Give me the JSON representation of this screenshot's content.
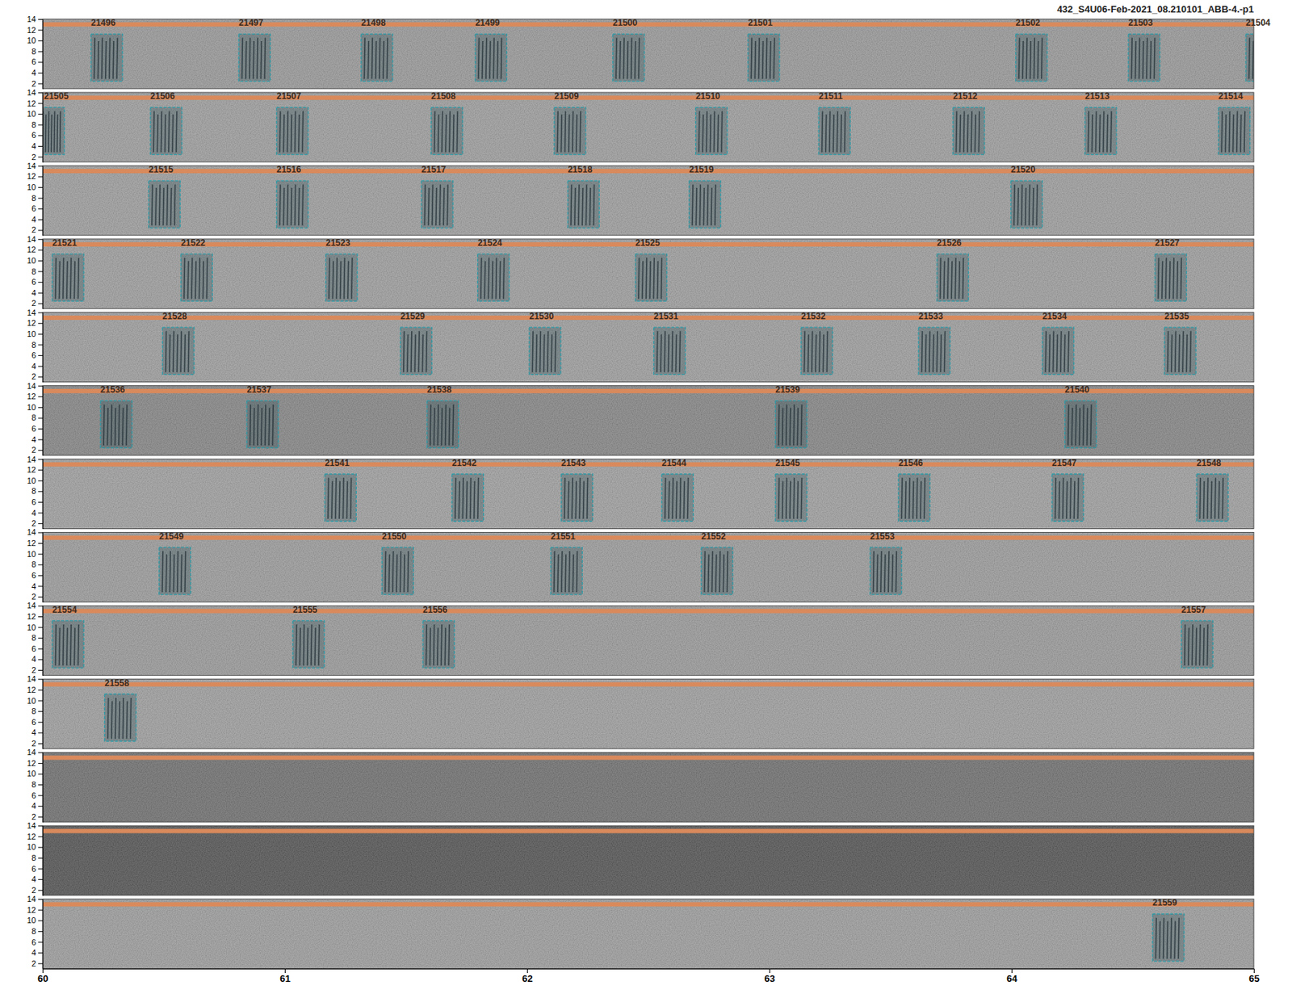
{
  "chart_data": {
    "type": "spectrogram",
    "title": "432_S4U06-Feb-2021_08.210101_ABB-4.-p1",
    "xlim": [
      60,
      65
    ],
    "xticks": [
      60,
      61,
      62,
      63,
      64,
      65
    ],
    "ylim": [
      1,
      14
    ],
    "yticks": [
      2,
      4,
      6,
      8,
      10,
      12,
      14
    ],
    "tick_labels": "y",
    "band": [
      12.6,
      13.4
    ],
    "box_freq": [
      2.4,
      11.2
    ],
    "rows": [
      {
        "color": "#8d8d8d",
        "boxes": [
          {
            "label": "21496",
            "start": 60.2,
            "end": 60.33
          },
          {
            "label": "21497",
            "start": 60.81,
            "end": 60.94
          },
          {
            "label": "21498",
            "start": 61.315,
            "end": 61.445
          },
          {
            "label": "21499",
            "start": 61.786,
            "end": 61.916
          },
          {
            "label": "21500",
            "start": 62.354,
            "end": 62.484
          },
          {
            "label": "21501",
            "start": 62.912,
            "end": 63.042
          },
          {
            "label": "21502",
            "start": 64.017,
            "end": 64.147
          },
          {
            "label": "21503",
            "start": 64.482,
            "end": 64.612
          },
          {
            "label": "21504",
            "start": 64.967,
            "end": 65.097
          }
        ]
      },
      {
        "color": "#939393",
        "boxes": [
          {
            "label": "21505",
            "start": 59.99,
            "end": 60.09
          },
          {
            "label": "21506",
            "start": 60.445,
            "end": 60.575
          },
          {
            "label": "21507",
            "start": 60.966,
            "end": 61.096
          },
          {
            "label": "21508",
            "start": 61.604,
            "end": 61.734
          },
          {
            "label": "21509",
            "start": 62.112,
            "end": 62.242
          },
          {
            "label": "21510",
            "start": 62.696,
            "end": 62.826
          },
          {
            "label": "21511",
            "start": 63.204,
            "end": 63.334
          },
          {
            "label": "21512",
            "start": 63.758,
            "end": 63.888
          },
          {
            "label": "21513",
            "start": 64.303,
            "end": 64.433
          },
          {
            "label": "21514",
            "start": 64.854,
            "end": 64.984
          }
        ]
      },
      {
        "color": "#939393",
        "boxes": [
          {
            "label": "21515",
            "start": 60.438,
            "end": 60.568
          },
          {
            "label": "21516",
            "start": 60.966,
            "end": 61.096
          },
          {
            "label": "21517",
            "start": 61.564,
            "end": 61.694
          },
          {
            "label": "21518",
            "start": 62.168,
            "end": 62.298
          },
          {
            "label": "21519",
            "start": 62.669,
            "end": 62.799
          },
          {
            "label": "21520",
            "start": 63.997,
            "end": 64.127
          }
        ]
      },
      {
        "color": "#939393",
        "boxes": [
          {
            "label": "21521",
            "start": 60.04,
            "end": 60.17
          },
          {
            "label": "21522",
            "start": 60.571,
            "end": 60.701
          },
          {
            "label": "21523",
            "start": 61.169,
            "end": 61.299
          },
          {
            "label": "21524",
            "start": 61.796,
            "end": 61.926
          },
          {
            "label": "21525",
            "start": 62.447,
            "end": 62.577
          },
          {
            "label": "21526",
            "start": 63.692,
            "end": 63.822
          },
          {
            "label": "21527",
            "start": 64.592,
            "end": 64.722
          }
        ]
      },
      {
        "color": "#939393",
        "boxes": [
          {
            "label": "21528",
            "start": 60.495,
            "end": 60.625
          },
          {
            "label": "21529",
            "start": 61.477,
            "end": 61.607
          },
          {
            "label": "21530",
            "start": 62.009,
            "end": 62.139
          },
          {
            "label": "21531",
            "start": 62.523,
            "end": 62.653
          },
          {
            "label": "21532",
            "start": 63.131,
            "end": 63.261
          },
          {
            "label": "21533",
            "start": 63.616,
            "end": 63.746
          },
          {
            "label": "21534",
            "start": 64.127,
            "end": 64.257
          },
          {
            "label": "21535",
            "start": 64.631,
            "end": 64.761
          }
        ]
      },
      {
        "color": "#767676",
        "boxes": [
          {
            "label": "21536",
            "start": 60.239,
            "end": 60.369
          },
          {
            "label": "21537",
            "start": 60.843,
            "end": 60.973
          },
          {
            "label": "21538",
            "start": 61.587,
            "end": 61.717
          },
          {
            "label": "21539",
            "start": 63.025,
            "end": 63.155
          },
          {
            "label": "21540",
            "start": 64.22,
            "end": 64.35
          }
        ]
      },
      {
        "color": "#959595",
        "boxes": [
          {
            "label": "21541",
            "start": 61.165,
            "end": 61.295
          },
          {
            "label": "21542",
            "start": 61.69,
            "end": 61.82
          },
          {
            "label": "21543",
            "start": 62.141,
            "end": 62.271
          },
          {
            "label": "21544",
            "start": 62.556,
            "end": 62.686
          },
          {
            "label": "21545",
            "start": 63.025,
            "end": 63.155
          },
          {
            "label": "21546",
            "start": 63.533,
            "end": 63.663
          },
          {
            "label": "21547",
            "start": 64.167,
            "end": 64.297
          },
          {
            "label": "21548",
            "start": 64.764,
            "end": 64.894
          }
        ]
      },
      {
        "color": "#909090",
        "boxes": [
          {
            "label": "21549",
            "start": 60.481,
            "end": 60.611
          },
          {
            "label": "21550",
            "start": 61.401,
            "end": 61.531
          },
          {
            "label": "21551",
            "start": 62.098,
            "end": 62.228
          },
          {
            "label": "21552",
            "start": 62.719,
            "end": 62.849
          },
          {
            "label": "21553",
            "start": 63.416,
            "end": 63.546
          }
        ]
      },
      {
        "color": "#8e8e8e",
        "boxes": [
          {
            "label": "21554",
            "start": 60.04,
            "end": 60.17
          },
          {
            "label": "21555",
            "start": 61.033,
            "end": 61.163
          },
          {
            "label": "21556",
            "start": 61.57,
            "end": 61.7
          },
          {
            "label": "21557",
            "start": 64.701,
            "end": 64.831
          }
        ]
      },
      {
        "color": "#949494",
        "boxes": [
          {
            "label": "21558",
            "start": 60.256,
            "end": 60.386
          }
        ]
      },
      {
        "color": "#5c5c5c",
        "boxes": []
      },
      {
        "color": "#3a3a3a",
        "boxes": []
      },
      {
        "color": "#929292",
        "boxes": [
          {
            "label": "21559",
            "start": 64.582,
            "end": 64.712
          }
        ]
      }
    ]
  }
}
